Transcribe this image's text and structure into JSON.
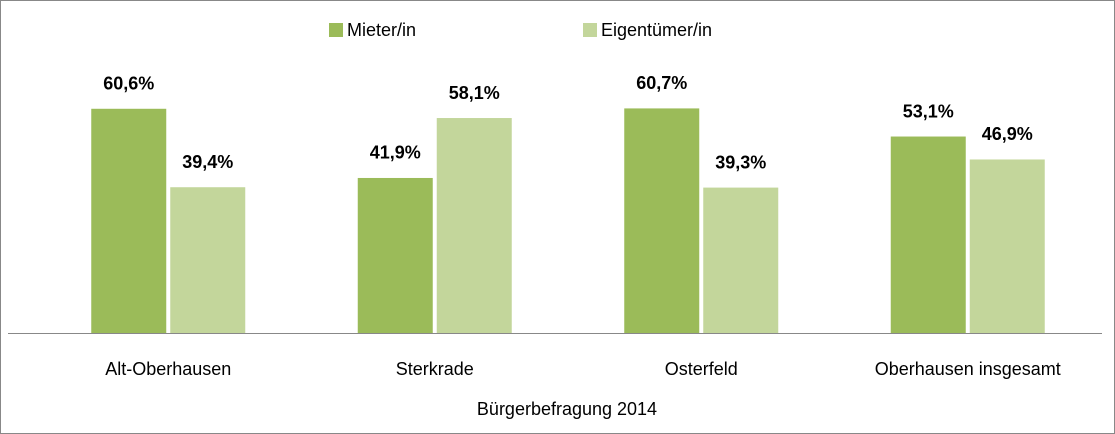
{
  "chart_data": {
    "type": "bar",
    "categories": [
      "Alt-Oberhausen",
      "Sterkrade",
      "Osterfeld",
      "Oberhausen insgesamt"
    ],
    "series": [
      {
        "name": "Mieter/in",
        "color": "#9bbb59",
        "values": [
          60.6,
          41.9,
          60.7,
          53.1
        ],
        "value_labels": [
          "60,6%",
          "41,9%",
          "60,7%",
          "53,1%"
        ]
      },
      {
        "name": "Eigentümer/in",
        "color": "#c3d69b",
        "values": [
          39.4,
          58.1,
          39.3,
          46.9
        ],
        "value_labels": [
          "39,4%",
          "58,1%",
          "39,3%",
          "46,9%"
        ]
      }
    ],
    "x_label": "Bürgerbefragung 2014",
    "ylim": [
      0,
      70
    ],
    "legend": "top"
  }
}
